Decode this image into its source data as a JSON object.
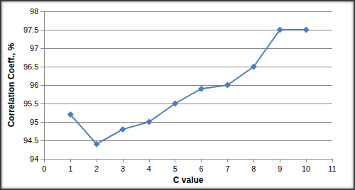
{
  "chart_data": {
    "type": "line",
    "x": [
      1,
      2,
      3,
      4,
      5,
      6,
      7,
      8,
      9,
      10
    ],
    "values": [
      95.2,
      94.4,
      94.8,
      95.0,
      95.5,
      95.9,
      96.0,
      96.5,
      97.5,
      97.5
    ],
    "color": "#4a7ebb",
    "marker": "diamond",
    "xlabel": "C value",
    "ylabel": "Correlation Coeff., %",
    "xlim": [
      0,
      11
    ],
    "xticks": [
      0,
      1,
      2,
      3,
      4,
      5,
      6,
      7,
      8,
      9,
      10,
      11
    ],
    "ylim": [
      94,
      98
    ],
    "yticks": [
      94,
      94.5,
      95,
      95.5,
      96,
      96.5,
      97,
      97.5,
      98
    ],
    "grid": true
  }
}
